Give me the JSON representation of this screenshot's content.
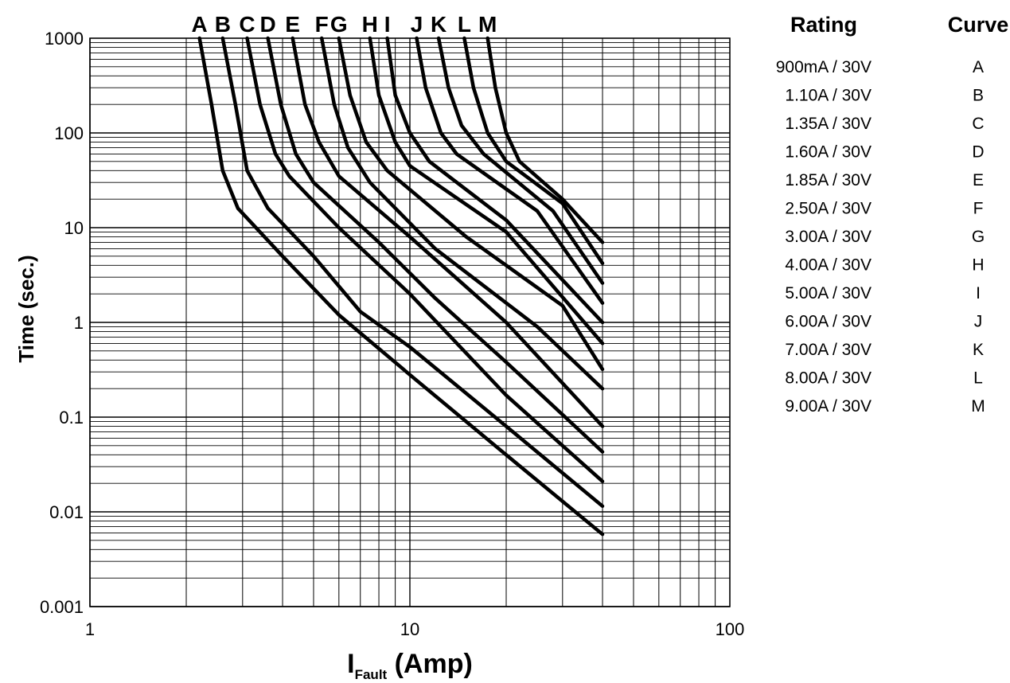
{
  "chart_data": {
    "type": "line",
    "x_scale": "log",
    "y_scale": "log",
    "xlim": [
      1,
      100
    ],
    "ylim": [
      0.001,
      1000
    ],
    "x_ticks": [
      "1",
      "10",
      "100"
    ],
    "y_ticks": [
      "0.001",
      "0.01",
      "0.1",
      "1",
      "10",
      "100",
      "1000"
    ],
    "xlabel_main": "I",
    "xlabel_sub": "Fault",
    "xlabel_tail": " (Amp)",
    "ylabel": "Time (sec.)",
    "grid": true,
    "series": [
      {
        "name": "A",
        "points": [
          [
            2.2,
            1000
          ],
          [
            2.4,
            200
          ],
          [
            2.6,
            40
          ],
          [
            2.9,
            16
          ],
          [
            4,
            5
          ],
          [
            6,
            1.2
          ],
          [
            10,
            0.28
          ],
          [
            20,
            0.04
          ],
          [
            40,
            0.0058
          ]
        ]
      },
      {
        "name": "B",
        "points": [
          [
            2.6,
            1000
          ],
          [
            2.85,
            200
          ],
          [
            3.1,
            40
          ],
          [
            3.6,
            16
          ],
          [
            5,
            5
          ],
          [
            7,
            1.3
          ],
          [
            10,
            0.55
          ],
          [
            20,
            0.08
          ],
          [
            40,
            0.0115
          ]
        ]
      },
      {
        "name": "C",
        "points": [
          [
            3.1,
            1000
          ],
          [
            3.4,
            200
          ],
          [
            3.8,
            60
          ],
          [
            4.2,
            35
          ],
          [
            6,
            10
          ],
          [
            10,
            2
          ],
          [
            20,
            0.17
          ],
          [
            40,
            0.021
          ]
        ]
      },
      {
        "name": "D",
        "points": [
          [
            3.6,
            1000
          ],
          [
            3.95,
            200
          ],
          [
            4.4,
            60
          ],
          [
            5,
            30
          ],
          [
            8,
            7
          ],
          [
            12,
            1.8
          ],
          [
            20,
            0.38
          ],
          [
            40,
            0.043
          ]
        ]
      },
      {
        "name": "E",
        "points": [
          [
            4.3,
            1000
          ],
          [
            4.7,
            200
          ],
          [
            5.2,
            80
          ],
          [
            6,
            35
          ],
          [
            10,
            8
          ],
          [
            20,
            1
          ],
          [
            40,
            0.08
          ]
        ]
      },
      {
        "name": "F",
        "points": [
          [
            5.3,
            1000
          ],
          [
            5.8,
            200
          ],
          [
            6.4,
            70
          ],
          [
            7.5,
            30
          ],
          [
            12,
            6
          ],
          [
            25,
            0.9
          ],
          [
            40,
            0.2
          ]
        ]
      },
      {
        "name": "G",
        "points": [
          [
            6,
            1000
          ],
          [
            6.5,
            250
          ],
          [
            7.3,
            80
          ],
          [
            8.5,
            40
          ],
          [
            15,
            8
          ],
          [
            30,
            1.5
          ],
          [
            40,
            0.32
          ]
        ]
      },
      {
        "name": "H",
        "points": [
          [
            7.5,
            1000
          ],
          [
            8,
            250
          ],
          [
            9,
            80
          ],
          [
            10,
            45
          ],
          [
            20,
            9
          ],
          [
            40,
            0.6
          ]
        ]
      },
      {
        "name": "I",
        "points": [
          [
            8.5,
            1000
          ],
          [
            9,
            250
          ],
          [
            10,
            100
          ],
          [
            11.5,
            50
          ],
          [
            20,
            12
          ],
          [
            40,
            1
          ]
        ]
      },
      {
        "name": "J",
        "points": [
          [
            10.5,
            1000
          ],
          [
            11.2,
            300
          ],
          [
            12.5,
            100
          ],
          [
            14,
            60
          ],
          [
            25,
            15
          ],
          [
            40,
            1.6
          ]
        ]
      },
      {
        "name": "K",
        "points": [
          [
            12.3,
            1000
          ],
          [
            13.2,
            300
          ],
          [
            14.5,
            120
          ],
          [
            17,
            60
          ],
          [
            28,
            15
          ],
          [
            40,
            2.6
          ]
        ]
      },
      {
        "name": "L",
        "points": [
          [
            14.8,
            1000
          ],
          [
            15.8,
            300
          ],
          [
            17.5,
            100
          ],
          [
            20,
            50
          ],
          [
            30,
            18
          ],
          [
            40,
            4.2
          ]
        ]
      },
      {
        "name": "M",
        "points": [
          [
            17.5,
            1000
          ],
          [
            18.5,
            300
          ],
          [
            20,
            100
          ],
          [
            22,
            50
          ],
          [
            30,
            20
          ],
          [
            40,
            7
          ]
        ]
      }
    ]
  },
  "legend": {
    "rating_header": "Rating",
    "curve_header": "Curve",
    "rows": [
      {
        "rating": "900mA / 30V",
        "curve": "A"
      },
      {
        "rating": "1.10A / 30V",
        "curve": "B"
      },
      {
        "rating": "1.35A / 30V",
        "curve": "C"
      },
      {
        "rating": "1.60A / 30V",
        "curve": "D"
      },
      {
        "rating": "1.85A / 30V",
        "curve": "E"
      },
      {
        "rating": "2.50A / 30V",
        "curve": "F"
      },
      {
        "rating": "3.00A / 30V",
        "curve": "G"
      },
      {
        "rating": "4.00A / 30V",
        "curve": "H"
      },
      {
        "rating": "5.00A / 30V",
        "curve": "I"
      },
      {
        "rating": "6.00A / 30V",
        "curve": "J"
      },
      {
        "rating": "7.00A / 30V",
        "curve": "K"
      },
      {
        "rating": "8.00A / 30V",
        "curve": "L"
      },
      {
        "rating": "9.00A / 30V",
        "curve": "M"
      }
    ]
  }
}
